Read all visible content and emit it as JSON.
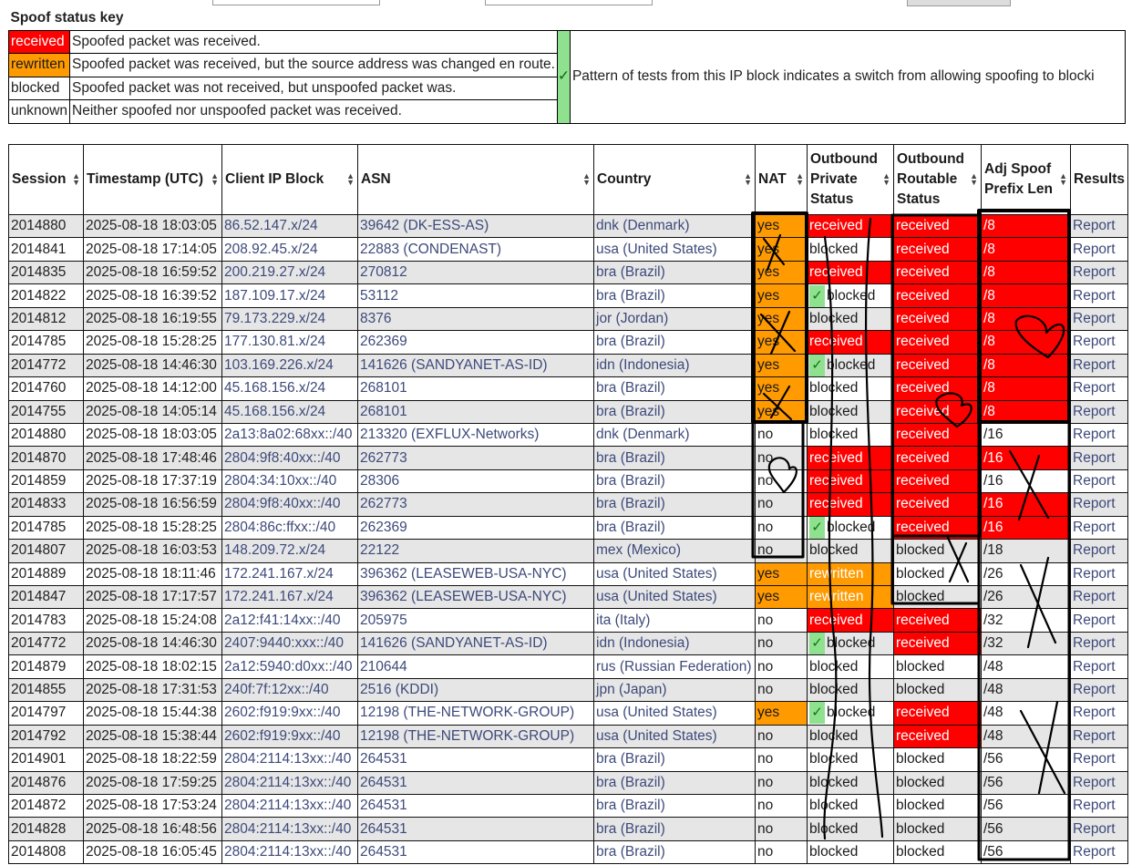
{
  "key": {
    "title": "Spoof status key",
    "items": [
      {
        "status": "received",
        "desc": "Spoofed packet was received.",
        "color": "#ff0000"
      },
      {
        "status": "rewritten",
        "desc": "Spoofed packet was received, but the source address was changed en route.",
        "color": "#ff9a00"
      },
      {
        "status": "blocked",
        "desc": "Spoofed packet was not received, but unspoofed packet was.",
        "color": "#ffffff"
      },
      {
        "status": "unknown",
        "desc": "Neither spoofed nor unspoofed packet was received.",
        "color": "#ffffff"
      }
    ],
    "pattern_mark": "✓",
    "pattern_mark_color": "#8fe08f",
    "pattern_desc": "Pattern of tests from this IP block indicates a switch from allowing spoofing to blocki"
  },
  "table": {
    "headers": [
      "Session",
      "Timestamp (UTC)",
      "Client IP Block",
      "ASN",
      "Country",
      "NAT",
      "Outbound Private Status",
      "Outbound Routable Status",
      "Adj Spoof Prefix Len",
      "Results"
    ],
    "rows": [
      {
        "session": "2014880",
        "ts": "2025-08-18 18:03:05",
        "ip": "86.52.147.x/24",
        "asn": "39642 (DK-ESS-AS)",
        "country": "dnk (Denmark)",
        "nat": "yes",
        "priv": "received",
        "privcheck": false,
        "rout": "received",
        "prefix": "/8",
        "prefix_red": true,
        "result": "Report"
      },
      {
        "session": "2014841",
        "ts": "2025-08-18 17:14:05",
        "ip": "208.92.45.x/24",
        "asn": "22883 (CONDENAST)",
        "country": "usa (United States)",
        "nat": "yes",
        "priv": "blocked",
        "privcheck": false,
        "rout": "received",
        "prefix": "/8",
        "prefix_red": true,
        "result": "Report"
      },
      {
        "session": "2014835",
        "ts": "2025-08-18 16:59:52",
        "ip": "200.219.27.x/24",
        "asn": "270812",
        "country": "bra (Brazil)",
        "nat": "yes",
        "priv": "received",
        "privcheck": false,
        "rout": "received",
        "prefix": "/8",
        "prefix_red": true,
        "result": "Report"
      },
      {
        "session": "2014822",
        "ts": "2025-08-18 16:39:52",
        "ip": "187.109.17.x/24",
        "asn": "53112",
        "country": "bra (Brazil)",
        "nat": "yes",
        "priv": "blocked",
        "privcheck": true,
        "rout": "received",
        "prefix": "/8",
        "prefix_red": true,
        "result": "Report"
      },
      {
        "session": "2014812",
        "ts": "2025-08-18 16:19:55",
        "ip": "79.173.229.x/24",
        "asn": "8376",
        "country": "jor (Jordan)",
        "nat": "yes",
        "priv": "blocked",
        "privcheck": false,
        "rout": "received",
        "prefix": "/8",
        "prefix_red": true,
        "result": "Report"
      },
      {
        "session": "2014785",
        "ts": "2025-08-18 15:28:25",
        "ip": "177.130.81.x/24",
        "asn": "262369",
        "country": "bra (Brazil)",
        "nat": "yes",
        "priv": "received",
        "privcheck": false,
        "rout": "received",
        "prefix": "/8",
        "prefix_red": true,
        "result": "Report"
      },
      {
        "session": "2014772",
        "ts": "2025-08-18 14:46:30",
        "ip": "103.169.226.x/24",
        "asn": "141626 (SANDYANET-AS-ID)",
        "country": "idn (Indonesia)",
        "nat": "yes",
        "priv": "blocked",
        "privcheck": true,
        "rout": "received",
        "prefix": "/8",
        "prefix_red": true,
        "result": "Report"
      },
      {
        "session": "2014760",
        "ts": "2025-08-18 14:12:00",
        "ip": "45.168.156.x/24",
        "asn": "268101",
        "country": "bra (Brazil)",
        "nat": "yes",
        "priv": "blocked",
        "privcheck": false,
        "rout": "received",
        "prefix": "/8",
        "prefix_red": true,
        "result": "Report"
      },
      {
        "session": "2014755",
        "ts": "2025-08-18 14:05:14",
        "ip": "45.168.156.x/24",
        "asn": "268101",
        "country": "bra (Brazil)",
        "nat": "yes",
        "priv": "blocked",
        "privcheck": false,
        "rout": "received",
        "prefix": "/8",
        "prefix_red": true,
        "result": "Report"
      },
      {
        "session": "2014880",
        "ts": "2025-08-18 18:03:05",
        "ip": "2a13:8a02:68xx::/40",
        "asn": "213320 (EXFLUX-Networks)",
        "country": "dnk (Denmark)",
        "nat": "no",
        "priv": "blocked",
        "privcheck": false,
        "rout": "received",
        "prefix": "/16",
        "prefix_red": false,
        "result": "Report"
      },
      {
        "session": "2014870",
        "ts": "2025-08-18 17:48:46",
        "ip": "2804:9f8:40xx::/40",
        "asn": "262773",
        "country": "bra (Brazil)",
        "nat": "no",
        "priv": "received",
        "privcheck": false,
        "rout": "received",
        "prefix": "/16",
        "prefix_red": true,
        "result": "Report"
      },
      {
        "session": "2014859",
        "ts": "2025-08-18 17:37:19",
        "ip": "2804:34:10xx::/40",
        "asn": "28306",
        "country": "bra (Brazil)",
        "nat": "no",
        "priv": "received",
        "privcheck": false,
        "rout": "received",
        "prefix": "/16",
        "prefix_red": false,
        "result": "Report"
      },
      {
        "session": "2014833",
        "ts": "2025-08-18 16:56:59",
        "ip": "2804:9f8:40xx::/40",
        "asn": "262773",
        "country": "bra (Brazil)",
        "nat": "no",
        "priv": "received",
        "privcheck": false,
        "rout": "received",
        "prefix": "/16",
        "prefix_red": true,
        "result": "Report"
      },
      {
        "session": "2014785",
        "ts": "2025-08-18 15:28:25",
        "ip": "2804:86c:ffxx::/40",
        "asn": "262369",
        "country": "bra (Brazil)",
        "nat": "no",
        "priv": "blocked",
        "privcheck": true,
        "rout": "received",
        "prefix": "/16",
        "prefix_red": true,
        "result": "Report"
      },
      {
        "session": "2014807",
        "ts": "2025-08-18 16:03:53",
        "ip": "148.209.72.x/24",
        "asn": "22122",
        "country": "mex (Mexico)",
        "nat": "no",
        "priv": "blocked",
        "privcheck": false,
        "rout": "blocked",
        "prefix": "/18",
        "prefix_red": false,
        "result": "Report"
      },
      {
        "session": "2014889",
        "ts": "2025-08-18 18:11:46",
        "ip": "172.241.167.x/24",
        "asn": "396362 (LEASEWEB-USA-NYC)",
        "country": "usa (United States)",
        "nat": "yes",
        "priv": "rewritten",
        "privcheck": false,
        "rout": "blocked",
        "prefix": "/26",
        "prefix_red": false,
        "result": "Report"
      },
      {
        "session": "2014847",
        "ts": "2025-08-18 17:17:57",
        "ip": "172.241.167.x/24",
        "asn": "396362 (LEASEWEB-USA-NYC)",
        "country": "usa (United States)",
        "nat": "yes",
        "priv": "rewritten",
        "privcheck": false,
        "rout": "blocked",
        "prefix": "/26",
        "prefix_red": false,
        "result": "Report"
      },
      {
        "session": "2014783",
        "ts": "2025-08-18 15:24:08",
        "ip": "2a12:f41:14xx::/40",
        "asn": "205975",
        "country": "ita (Italy)",
        "nat": "no",
        "priv": "received",
        "privcheck": false,
        "rout": "received",
        "prefix": "/32",
        "prefix_red": false,
        "result": "Report"
      },
      {
        "session": "2014772",
        "ts": "2025-08-18 14:46:30",
        "ip": "2407:9440:xxx::/40",
        "asn": "141626 (SANDYANET-AS-ID)",
        "country": "idn (Indonesia)",
        "nat": "no",
        "priv": "blocked",
        "privcheck": true,
        "rout": "received",
        "prefix": "/32",
        "prefix_red": false,
        "result": "Report"
      },
      {
        "session": "2014879",
        "ts": "2025-08-18 18:02:15",
        "ip": "2a12:5940:d0xx::/40",
        "asn": "210644",
        "country": "rus (Russian Federation)",
        "nat": "no",
        "priv": "blocked",
        "privcheck": false,
        "rout": "blocked",
        "prefix": "/48",
        "prefix_red": false,
        "result": "Report"
      },
      {
        "session": "2014855",
        "ts": "2025-08-18 17:31:53",
        "ip": "240f:7f:12xx::/40",
        "asn": "2516 (KDDI)",
        "country": "jpn (Japan)",
        "nat": "no",
        "priv": "blocked",
        "privcheck": false,
        "rout": "blocked",
        "prefix": "/48",
        "prefix_red": false,
        "result": "Report"
      },
      {
        "session": "2014797",
        "ts": "2025-08-18 15:44:38",
        "ip": "2602:f919:9xx::/40",
        "asn": "12198 (THE-NETWORK-GROUP)",
        "country": "usa (United States)",
        "nat": "yes",
        "priv": "blocked",
        "privcheck": true,
        "rout": "received",
        "prefix": "/48",
        "prefix_red": false,
        "result": "Report"
      },
      {
        "session": "2014792",
        "ts": "2025-08-18 15:38:44",
        "ip": "2602:f919:9xx::/40",
        "asn": "12198 (THE-NETWORK-GROUP)",
        "country": "usa (United States)",
        "nat": "no",
        "priv": "blocked",
        "privcheck": false,
        "rout": "received",
        "prefix": "/48",
        "prefix_red": false,
        "result": "Report"
      },
      {
        "session": "2014901",
        "ts": "2025-08-18 18:22:59",
        "ip": "2804:2114:13xx::/40",
        "asn": "264531",
        "country": "bra (Brazil)",
        "nat": "no",
        "priv": "blocked",
        "privcheck": false,
        "rout": "blocked",
        "prefix": "/56",
        "prefix_red": false,
        "result": "Report"
      },
      {
        "session": "2014876",
        "ts": "2025-08-18 17:59:25",
        "ip": "2804:2114:13xx::/40",
        "asn": "264531",
        "country": "bra (Brazil)",
        "nat": "no",
        "priv": "blocked",
        "privcheck": false,
        "rout": "blocked",
        "prefix": "/56",
        "prefix_red": false,
        "result": "Report"
      },
      {
        "session": "2014872",
        "ts": "2025-08-18 17:53:24",
        "ip": "2804:2114:13xx::/40",
        "asn": "264531",
        "country": "bra (Brazil)",
        "nat": "no",
        "priv": "blocked",
        "privcheck": false,
        "rout": "blocked",
        "prefix": "/56",
        "prefix_red": false,
        "result": "Report"
      },
      {
        "session": "2014828",
        "ts": "2025-08-18 16:48:56",
        "ip": "2804:2114:13xx::/40",
        "asn": "264531",
        "country": "bra (Brazil)",
        "nat": "no",
        "priv": "blocked",
        "privcheck": false,
        "rout": "blocked",
        "prefix": "/56",
        "prefix_red": false,
        "result": "Report"
      },
      {
        "session": "2014808",
        "ts": "2025-08-18 16:05:45",
        "ip": "2804:2114:13xx::/40",
        "asn": "264531",
        "country": "bra (Brazil)",
        "nat": "no",
        "priv": "blocked",
        "privcheck": false,
        "rout": "blocked",
        "prefix": "/56",
        "prefix_red": false,
        "result": "Report"
      }
    ]
  },
  "icons": {
    "sort": "sort-arrows-icon",
    "check": "checkmark-icon"
  },
  "colors": {
    "received": "#ff0000",
    "rewritten": "#ff9a00",
    "nat_yes": "#ff9a00",
    "link": "#3d4a7a",
    "row_stripe": "#e6e6e6",
    "check_bg": "#8fe08f"
  }
}
